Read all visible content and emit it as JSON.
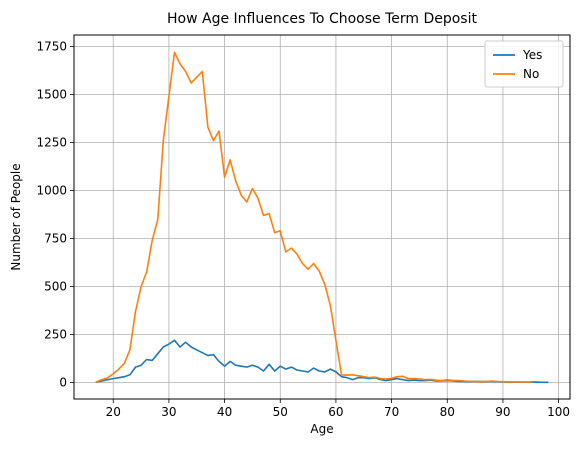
{
  "chart_data": {
    "type": "line",
    "title": "How Age Influences To Choose Term Deposit",
    "xlabel": "Age",
    "ylabel": "Number of People",
    "xlim": [
      12.95,
      102.05
    ],
    "ylim": [
      -86,
      1810
    ],
    "xticks": [
      20,
      30,
      40,
      50,
      60,
      70,
      80,
      90,
      100
    ],
    "yticks": [
      0,
      250,
      500,
      750,
      1000,
      1250,
      1500,
      1750
    ],
    "grid": true,
    "legend_position": "top-right",
    "colors": {
      "Yes": "#1f77b4",
      "No": "#ff7f0e"
    },
    "series": [
      {
        "name": "Yes",
        "x": [
          17,
          18,
          19,
          20,
          21,
          22,
          23,
          24,
          25,
          26,
          27,
          28,
          29,
          30,
          31,
          32,
          33,
          34,
          35,
          36,
          37,
          38,
          39,
          40,
          41,
          42,
          43,
          44,
          45,
          46,
          47,
          48,
          49,
          50,
          51,
          52,
          53,
          54,
          55,
          56,
          57,
          58,
          59,
          60,
          61,
          62,
          63,
          64,
          65,
          66,
          67,
          68,
          69,
          70,
          71,
          72,
          73,
          74,
          75,
          76,
          77,
          78,
          79,
          80,
          81,
          82,
          83,
          84,
          85,
          86,
          87,
          88,
          89,
          90,
          91,
          92,
          93,
          94,
          95,
          96,
          97,
          98
        ],
        "y": [
          2,
          8,
          15,
          20,
          25,
          30,
          40,
          80,
          90,
          120,
          115,
          150,
          185,
          200,
          220,
          185,
          210,
          185,
          170,
          155,
          140,
          145,
          110,
          85,
          110,
          90,
          85,
          80,
          90,
          80,
          60,
          95,
          60,
          85,
          70,
          80,
          65,
          60,
          55,
          75,
          60,
          55,
          70,
          55,
          30,
          25,
          15,
          25,
          25,
          20,
          25,
          15,
          10,
          15,
          20,
          15,
          10,
          12,
          10,
          10,
          12,
          8,
          8,
          10,
          8,
          5,
          5,
          4,
          5,
          4,
          4,
          5,
          4,
          3,
          2,
          2,
          2,
          2,
          2,
          2,
          1,
          1
        ]
      },
      {
        "name": "No",
        "x": [
          17,
          18,
          19,
          20,
          21,
          22,
          23,
          24,
          25,
          26,
          27,
          28,
          29,
          30,
          31,
          32,
          33,
          34,
          35,
          36,
          37,
          38,
          39,
          40,
          41,
          42,
          43,
          44,
          45,
          46,
          47,
          48,
          49,
          50,
          51,
          52,
          53,
          54,
          55,
          56,
          57,
          58,
          59,
          60,
          61,
          62,
          63,
          64,
          65,
          66,
          67,
          68,
          69,
          70,
          71,
          72,
          73,
          74,
          75,
          76,
          77,
          78,
          79,
          80,
          81,
          82,
          83,
          84,
          85,
          86,
          87,
          88,
          89,
          90,
          91,
          92,
          93,
          94,
          95
        ],
        "y": [
          3,
          15,
          25,
          45,
          70,
          100,
          170,
          370,
          500,
          575,
          740,
          850,
          1260,
          1490,
          1720,
          1660,
          1620,
          1560,
          1590,
          1620,
          1330,
          1260,
          1310,
          1070,
          1160,
          1050,
          975,
          940,
          1010,
          960,
          870,
          880,
          780,
          790,
          680,
          700,
          670,
          620,
          590,
          620,
          580,
          510,
          400,
          220,
          40,
          38,
          40,
          35,
          30,
          25,
          28,
          20,
          18,
          22,
          30,
          32,
          20,
          20,
          18,
          15,
          16,
          12,
          10,
          14,
          10,
          10,
          8,
          6,
          5,
          6,
          5,
          8,
          5,
          4,
          3,
          3,
          2,
          2,
          2
        ]
      }
    ]
  }
}
